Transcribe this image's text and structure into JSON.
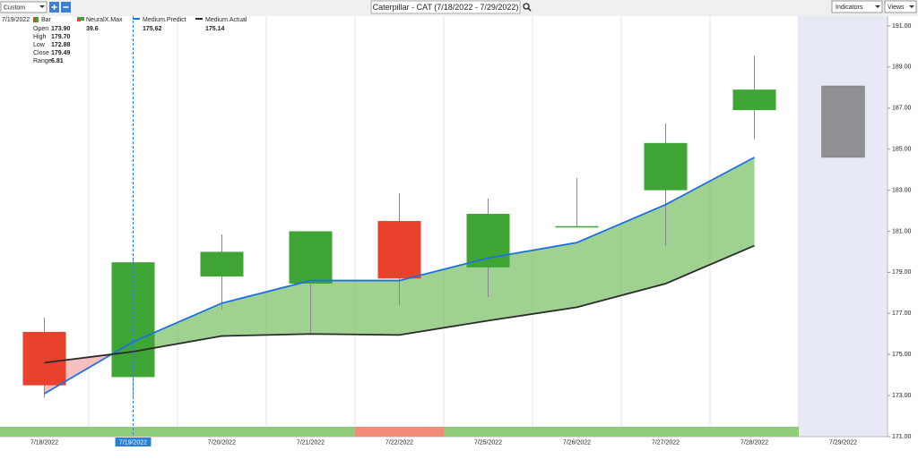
{
  "toolbar": {
    "view_select": "Custom",
    "title": "Caterpillar - CAT (7/18/2022 - 7/29/2022)",
    "indicators": "Indicators",
    "views": "Views"
  },
  "info": {
    "date": "7/19/2022",
    "rows": [
      [
        "Open",
        "173.90"
      ],
      [
        "High",
        "179.70"
      ],
      [
        "Low",
        "172.88"
      ],
      [
        "Close",
        "179.49"
      ],
      [
        "Range",
        "6.81"
      ]
    ]
  },
  "legend": {
    "bar": "Bar",
    "neuralx_name": "NeuralX.Max",
    "neuralx_value": "39.6"
  },
  "chart_data": {
    "type": "candlestick",
    "categories": [
      "7/18/2022",
      "7/19/2022",
      "7/20/2022",
      "7/21/2022",
      "7/22/2022",
      "7/25/2022",
      "7/26/2022",
      "7/27/2022",
      "7/28/2022",
      "7/29/2022"
    ],
    "open": [
      176.1,
      173.9,
      178.8,
      178.45,
      181.5,
      179.24,
      181.2,
      183.0,
      186.9,
      184.6
    ],
    "high": [
      176.8,
      179.7,
      180.85,
      181.0,
      182.85,
      182.6,
      183.6,
      186.25,
      189.55,
      null
    ],
    "low": [
      172.9,
      172.88,
      177.2,
      176.05,
      177.4,
      177.8,
      181.2,
      180.3,
      185.5,
      null
    ],
    "close": [
      173.5,
      179.49,
      180.0,
      181.0,
      178.7,
      181.85,
      181.25,
      185.3,
      187.9,
      188.08
    ],
    "up_color": "#3fa535",
    "down_color": "#e8412c",
    "forecast_color": "#8e9093",
    "series": [
      {
        "name": "Medium.Predict",
        "color": "#1f6fe0",
        "values": [
          173.09,
          175.62,
          177.5,
          178.6,
          178.6,
          179.7,
          180.45,
          182.3,
          184.6,
          null
        ]
      },
      {
        "name": "Medium.Actual",
        "color": "#2b2b2b",
        "values": [
          174.6,
          175.14,
          175.9,
          176.0,
          175.95,
          176.65,
          177.3,
          178.45,
          180.3,
          null
        ]
      }
    ],
    "neuralx_colors": [
      "#8fcc7a",
      "#8fcc7a",
      "#8fcc7a",
      "#8fcc7a",
      "#f28b7a",
      "#8fcc7a",
      "#8fcc7a",
      "#8fcc7a",
      "#8fcc7a",
      null
    ],
    "ylim": [
      171,
      191
    ],
    "yticks": [
      {
        "value": 171,
        "label": "171.00"
      },
      {
        "value": 173,
        "label": "173.00"
      },
      {
        "value": 175,
        "label": "175.00"
      },
      {
        "value": 177,
        "label": "177.00"
      },
      {
        "value": 179,
        "label": "179.00"
      },
      {
        "value": 181,
        "label": "181.00"
      },
      {
        "value": 183,
        "label": "183.00"
      },
      {
        "value": 185,
        "label": "185.00"
      },
      {
        "value": 187,
        "label": "187.00"
      },
      {
        "value": 189,
        "label": "189.00"
      },
      {
        "value": 191,
        "label": "191.00"
      }
    ]
  }
}
